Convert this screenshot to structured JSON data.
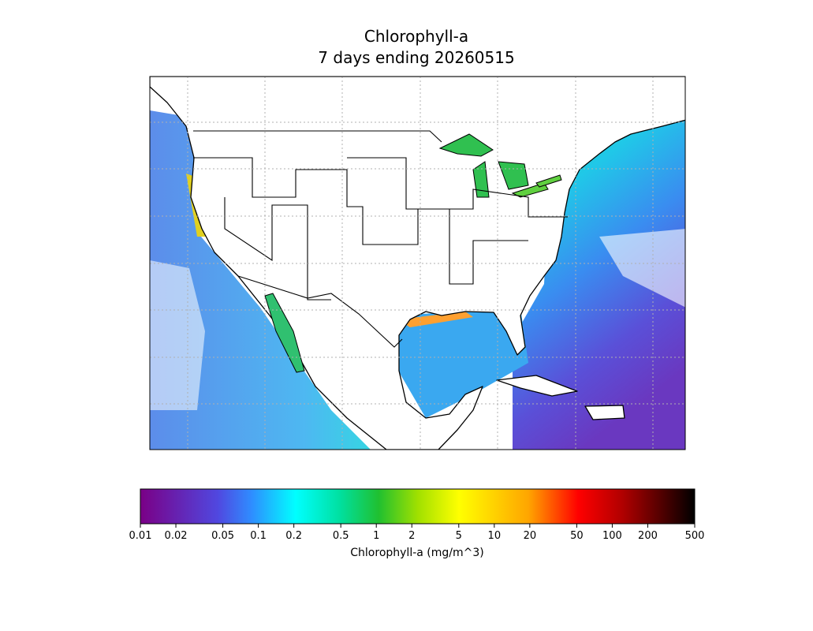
{
  "title": [
    "Chlorophyll-a",
    "7 days ending 20260515"
  ],
  "colorbar": {
    "label": "Chlorophyll-a (mg/m^3)",
    "scale": "log",
    "lim": [
      0.01,
      500
    ],
    "ticks": [
      0.01,
      0.02,
      0.05,
      0.1,
      0.2,
      0.5,
      1,
      2,
      5,
      10,
      20,
      50,
      100,
      200,
      500
    ]
  }
}
